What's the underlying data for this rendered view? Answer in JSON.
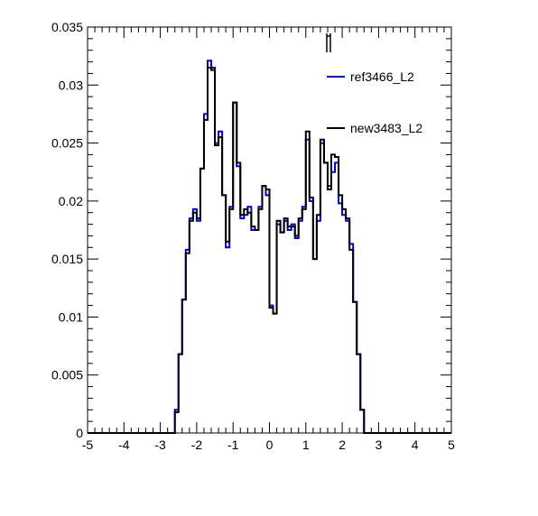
{
  "chart_data": {
    "type": "step",
    "title": "",
    "xlabel": "",
    "ylabel": "",
    "xlim": [
      -5,
      5
    ],
    "ylim": [
      0,
      0.035
    ],
    "x_ticks": [
      -5,
      -4,
      -3,
      -2,
      -1,
      0,
      1,
      2,
      3,
      4,
      5
    ],
    "x_tick_labels": [
      "-5",
      "-4",
      "-3",
      "-2",
      "-1",
      "0",
      "1",
      "2",
      "3",
      "4",
      "5"
    ],
    "y_ticks": [
      0,
      0.005,
      0.01,
      0.015,
      0.02,
      0.025,
      0.03,
      0.035
    ],
    "y_tick_labels": [
      "0",
      "0.005",
      "0.01",
      "0.015",
      "0.02",
      "0.025",
      "0.03",
      "0.035"
    ],
    "grid": false,
    "legend_position": "top-right",
    "bin_edges_range": [
      -5,
      5
    ],
    "bin_width": 0.1,
    "series": [
      {
        "name": "ref3466_L2",
        "color": "#0000cc",
        "values": [
          0,
          0,
          0,
          0,
          0,
          0,
          0,
          0,
          0,
          0,
          0,
          0,
          0,
          0,
          0,
          0,
          0,
          0,
          0,
          0,
          0,
          0,
          0,
          0,
          0.002,
          0.0068,
          0.0115,
          0.0158,
          0.0185,
          0.0193,
          0.0183,
          0.0228,
          0.0275,
          0.0321,
          0.0315,
          0.025,
          0.026,
          0.0205,
          0.016,
          0.0195,
          0.0285,
          0.023,
          0.0185,
          0.0188,
          0.0195,
          0.0175,
          0.0175,
          0.0195,
          0.0213,
          0.0205,
          0.011,
          0.0103,
          0.018,
          0.0173,
          0.0183,
          0.0175,
          0.018,
          0.0168,
          0.0183,
          0.0195,
          0.0253,
          0.02,
          0.015,
          0.0183,
          0.025,
          0.0233,
          0.0213,
          0.0225,
          0.0233,
          0.0198,
          0.0188,
          0.0183,
          0.0163,
          0.0113,
          0.0068,
          0.002,
          0,
          0,
          0,
          0,
          0,
          0,
          0,
          0,
          0,
          0,
          0,
          0,
          0,
          0,
          0,
          0,
          0,
          0,
          0,
          0,
          0,
          0,
          0,
          0
        ]
      },
      {
        "name": "new3483_L2",
        "color": "#000000",
        "values": [
          0,
          0,
          0,
          0,
          0,
          0,
          0,
          0,
          0,
          0,
          0,
          0,
          0,
          0,
          0,
          0,
          0,
          0,
          0,
          0,
          0,
          0,
          0,
          0,
          0.0018,
          0.0068,
          0.0115,
          0.0155,
          0.0183,
          0.019,
          0.0185,
          0.0228,
          0.027,
          0.0315,
          0.0313,
          0.0248,
          0.0255,
          0.0205,
          0.0165,
          0.0193,
          0.0285,
          0.0233,
          0.0188,
          0.0193,
          0.019,
          0.0178,
          0.0175,
          0.0193,
          0.0213,
          0.021,
          0.0108,
          0.0103,
          0.0183,
          0.0173,
          0.0185,
          0.0178,
          0.0178,
          0.017,
          0.0185,
          0.0193,
          0.026,
          0.0203,
          0.015,
          0.0188,
          0.0253,
          0.0233,
          0.021,
          0.024,
          0.0238,
          0.0205,
          0.0193,
          0.0185,
          0.0158,
          0.0113,
          0.0068,
          0.002,
          0,
          0,
          0,
          0,
          0,
          0,
          0,
          0,
          0,
          0,
          0,
          0,
          0,
          0,
          0,
          0,
          0,
          0,
          0,
          0,
          0,
          0,
          0,
          0
        ]
      }
    ]
  }
}
